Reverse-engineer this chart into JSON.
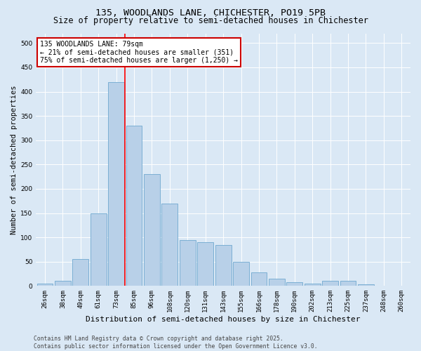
{
  "title": "135, WOODLANDS LANE, CHICHESTER, PO19 5PB",
  "subtitle": "Size of property relative to semi-detached houses in Chichester",
  "xlabel": "Distribution of semi-detached houses by size in Chichester",
  "ylabel": "Number of semi-detached properties",
  "categories": [
    "26sqm",
    "38sqm",
    "49sqm",
    "61sqm",
    "73sqm",
    "85sqm",
    "96sqm",
    "108sqm",
    "120sqm",
    "131sqm",
    "143sqm",
    "155sqm",
    "166sqm",
    "178sqm",
    "190sqm",
    "202sqm",
    "213sqm",
    "225sqm",
    "237sqm",
    "248sqm",
    "260sqm"
  ],
  "values": [
    5,
    10,
    55,
    150,
    420,
    330,
    230,
    170,
    95,
    90,
    85,
    50,
    28,
    15,
    8,
    5,
    10,
    10,
    3,
    1,
    1
  ],
  "bar_color": "#b8d0e8",
  "bar_edge_color": "#6fa8d0",
  "red_line_x": 4.5,
  "annotation_text": "135 WOODLANDS LANE: 79sqm\n← 21% of semi-detached houses are smaller (351)\n75% of semi-detached houses are larger (1,250) →",
  "annotation_box_color": "#ffffff",
  "annotation_box_edge": "#cc0000",
  "ylim": [
    0,
    520
  ],
  "yticks": [
    0,
    50,
    100,
    150,
    200,
    250,
    300,
    350,
    400,
    450,
    500
  ],
  "background_color": "#dae8f5",
  "plot_bg_color": "#dae8f5",
  "footer_line1": "Contains HM Land Registry data © Crown copyright and database right 2025.",
  "footer_line2": "Contains public sector information licensed under the Open Government Licence v3.0.",
  "title_fontsize": 9.5,
  "subtitle_fontsize": 8.5,
  "xlabel_fontsize": 8,
  "ylabel_fontsize": 7.5,
  "tick_fontsize": 6.5,
  "annotation_fontsize": 7,
  "footer_fontsize": 5.8
}
